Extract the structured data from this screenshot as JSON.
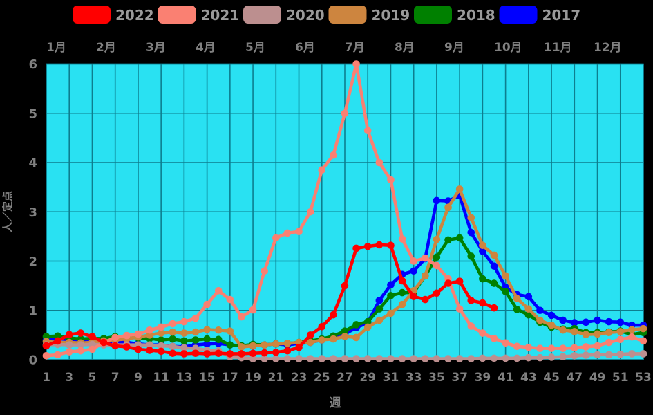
{
  "legend": {
    "items": [
      {
        "label": "2022",
        "color": "#ff0000"
      },
      {
        "label": "2021",
        "color": "#fa8072"
      },
      {
        "label": "2020",
        "color": "#bc8f8f"
      },
      {
        "label": "2019",
        "color": "#cd853f"
      },
      {
        "label": "2018",
        "color": "#008000"
      },
      {
        "label": "2017",
        "color": "#0000ff"
      }
    ],
    "text_color": "#9a9a9a"
  },
  "chart_data": {
    "type": "line",
    "title": "",
    "xlabel": "週",
    "ylabel": "人／定点",
    "xlim": [
      1,
      53
    ],
    "ylim": [
      0,
      6
    ],
    "grid": true,
    "plot_background": "#29e1f2",
    "grid_color": "#0d7e8f",
    "axis_text_color": "#808080",
    "month_labels": [
      "1月",
      "2月",
      "3月",
      "4月",
      "5月",
      "6月",
      "7月",
      "8月",
      "9月",
      "10月",
      "11月",
      "12月"
    ],
    "x_tick_labels": [
      1,
      3,
      5,
      7,
      9,
      11,
      13,
      15,
      17,
      19,
      21,
      23,
      25,
      27,
      29,
      31,
      33,
      35,
      37,
      39,
      41,
      43,
      45,
      47,
      49,
      51,
      53
    ],
    "y_tick_labels": [
      0,
      1,
      2,
      3,
      4,
      5,
      6
    ],
    "x_weeks": "1..53",
    "series": [
      {
        "name": "2022",
        "color": "#ff0000",
        "values": [
          0.28,
          0.38,
          0.51,
          0.54,
          0.47,
          0.35,
          0.28,
          0.26,
          0.21,
          0.19,
          0.17,
          0.13,
          0.12,
          0.13,
          0.12,
          0.13,
          0.12,
          0.12,
          0.13,
          0.14,
          0.15,
          0.18,
          0.25,
          0.5,
          0.67,
          0.91,
          1.5,
          2.26,
          2.3,
          2.33,
          2.32,
          1.6,
          1.28,
          1.22,
          1.35,
          1.55,
          1.59,
          1.2,
          1.15,
          1.05
        ]
      },
      {
        "name": "2021",
        "color": "#fa8072",
        "values": [
          0.08,
          0.1,
          0.16,
          0.18,
          0.21,
          0.35,
          0.45,
          0.49,
          0.52,
          0.6,
          0.66,
          0.73,
          0.77,
          0.84,
          1.12,
          1.4,
          1.22,
          0.87,
          1.01,
          1.8,
          2.47,
          2.57,
          2.6,
          3.0,
          3.85,
          4.15,
          5.0,
          6.0,
          4.65,
          4.0,
          3.65,
          2.45,
          2.0,
          2.06,
          1.91,
          1.64,
          1.03,
          0.68,
          0.54,
          0.43,
          0.34,
          0.27,
          0.25,
          0.23,
          0.23,
          0.23,
          0.24,
          0.26,
          0.28,
          0.35,
          0.41,
          0.46,
          0.38
        ]
      },
      {
        "name": "2020",
        "color": "#bc8f8f",
        "values": [
          0.3,
          0.31,
          0.3,
          0.3,
          0.31,
          0.3,
          0.3,
          0.3,
          0.3,
          0.3,
          0.28,
          0.27,
          0.24,
          0.23,
          0.19,
          0.18,
          0.06,
          0.04,
          0.02,
          0.02,
          0.02,
          0.02,
          0.02,
          0.02,
          0.02,
          0.02,
          0.02,
          0.02,
          0.02,
          0.02,
          0.02,
          0.02,
          0.02,
          0.02,
          0.02,
          0.02,
          0.02,
          0.02,
          0.03,
          0.03,
          0.03,
          0.03,
          0.04,
          0.04,
          0.05,
          0.06,
          0.08,
          0.09,
          0.1,
          0.1,
          0.11,
          0.12,
          0.12
        ]
      },
      {
        "name": "2019",
        "color": "#cd853f",
        "values": [
          0.37,
          0.35,
          0.35,
          0.34,
          0.35,
          0.38,
          0.4,
          0.42,
          0.46,
          0.5,
          0.54,
          0.56,
          0.54,
          0.56,
          0.61,
          0.6,
          0.58,
          0.26,
          0.28,
          0.3,
          0.32,
          0.33,
          0.35,
          0.35,
          0.4,
          0.42,
          0.47,
          0.45,
          0.66,
          0.8,
          0.94,
          1.12,
          1.4,
          1.7,
          2.44,
          3.09,
          3.46,
          2.88,
          2.32,
          2.12,
          1.7,
          1.24,
          1.03,
          0.8,
          0.7,
          0.6,
          0.57,
          0.51,
          0.52,
          0.55,
          0.57,
          0.61,
          0.63
        ]
      },
      {
        "name": "2018",
        "color": "#008000",
        "values": [
          0.47,
          0.48,
          0.44,
          0.42,
          0.43,
          0.43,
          0.47,
          0.46,
          0.44,
          0.43,
          0.4,
          0.42,
          0.38,
          0.4,
          0.42,
          0.41,
          0.3,
          0.28,
          0.31,
          0.3,
          0.32,
          0.33,
          0.35,
          0.38,
          0.42,
          0.48,
          0.58,
          0.71,
          0.77,
          1.03,
          1.3,
          1.36,
          1.36,
          1.7,
          2.08,
          2.43,
          2.47,
          2.1,
          1.64,
          1.55,
          1.38,
          1.02,
          0.91,
          0.76,
          0.66,
          0.62,
          0.63,
          0.55,
          0.55,
          0.56,
          0.58,
          0.51,
          0.55
        ]
      },
      {
        "name": "2017",
        "color": "#0000ff",
        "values": [
          0.4,
          0.43,
          0.4,
          0.38,
          0.36,
          0.35,
          0.36,
          0.35,
          0.32,
          0.3,
          0.3,
          0.27,
          0.26,
          0.3,
          0.32,
          0.33,
          0.3,
          0.28,
          0.28,
          0.3,
          0.32,
          0.3,
          0.33,
          0.35,
          0.4,
          0.45,
          0.52,
          0.65,
          0.75,
          1.2,
          1.52,
          1.73,
          1.8,
          2.05,
          3.23,
          3.22,
          3.33,
          2.58,
          2.2,
          1.9,
          1.47,
          1.32,
          1.28,
          1.0,
          0.9,
          0.8,
          0.75,
          0.76,
          0.8,
          0.77,
          0.76,
          0.7,
          0.7
        ]
      }
    ],
    "legend_position": "top",
    "months_position": "top"
  }
}
